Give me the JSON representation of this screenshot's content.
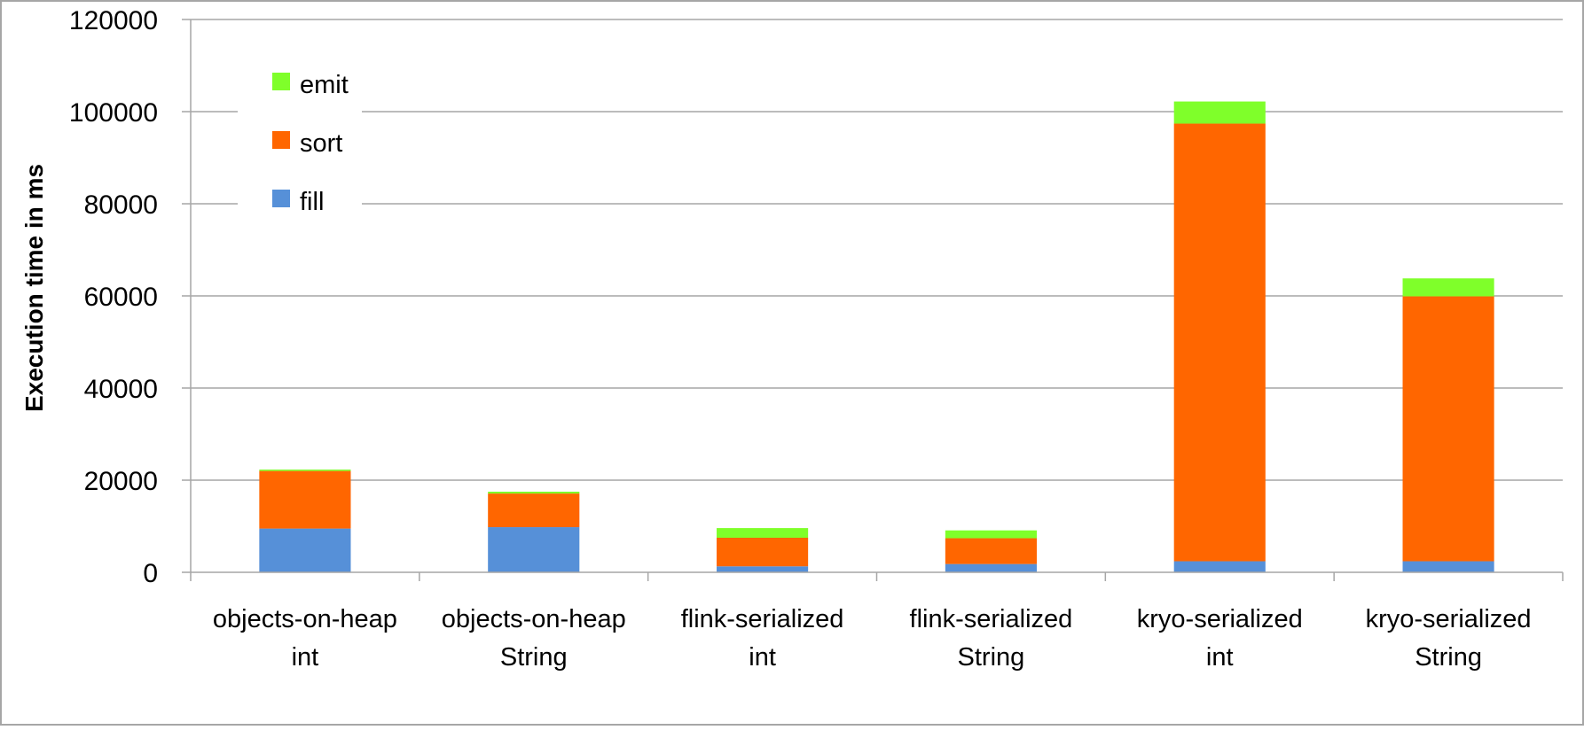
{
  "chart_data": {
    "type": "bar",
    "stacked": true,
    "ylabel": "Execution time in ms",
    "ylim": [
      0,
      120000
    ],
    "yticks": [
      0,
      20000,
      40000,
      60000,
      80000,
      100000,
      120000
    ],
    "grid": true,
    "legend_position": "top-left",
    "categories": [
      [
        "objects-on-heap",
        "int"
      ],
      [
        "objects-on-heap",
        "String"
      ],
      [
        "flink-serialized",
        "int"
      ],
      [
        "flink-serialized",
        "String"
      ],
      [
        "kryo-serialized",
        "int"
      ],
      [
        "kryo-serialized",
        "String"
      ]
    ],
    "series": [
      {
        "name": "fill",
        "color": "#5690D8",
        "values": [
          9500,
          9800,
          1300,
          1800,
          2400,
          2400
        ]
      },
      {
        "name": "sort",
        "color": "#FF6600",
        "values": [
          12500,
          7300,
          6200,
          5600,
          95000,
          57500
        ]
      },
      {
        "name": "emit",
        "color": "#7FFF2A",
        "values": [
          300,
          400,
          2100,
          1700,
          4800,
          3900
        ]
      }
    ]
  }
}
